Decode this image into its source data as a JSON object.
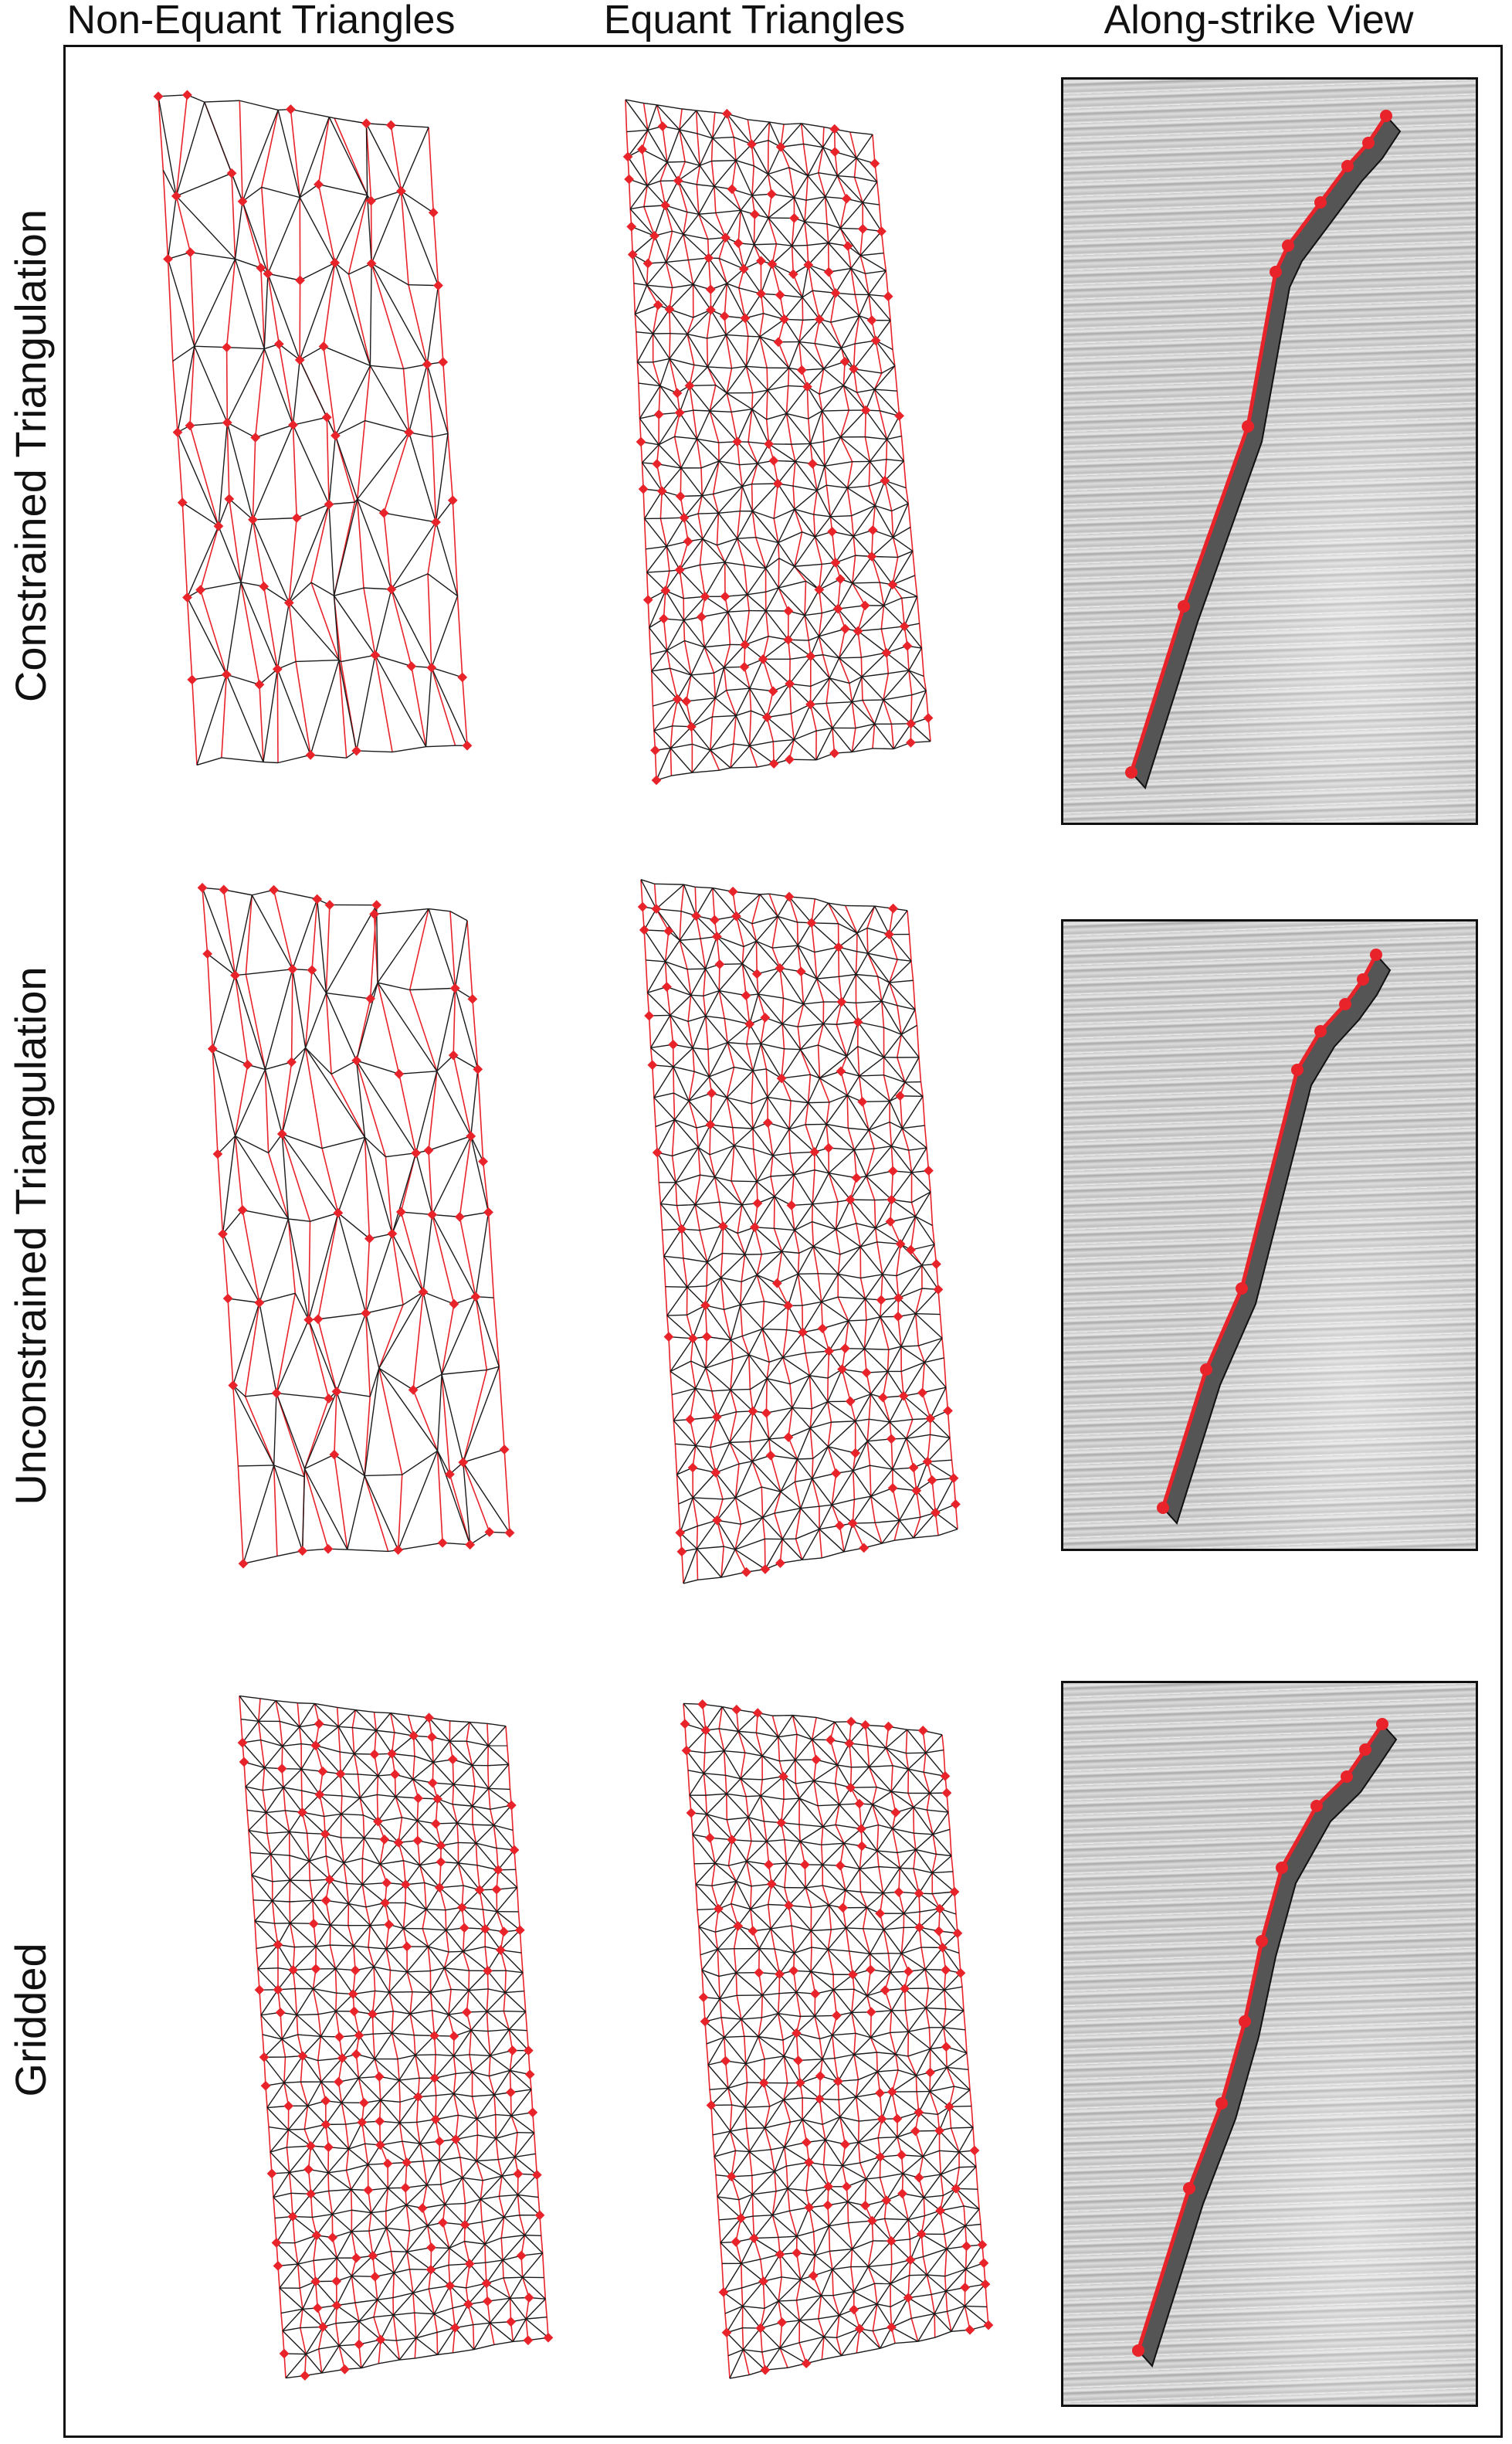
{
  "columns": {
    "non_equant": "Non-Equant Triangles",
    "equant": "Equant Triangles",
    "along_strike": "Along-strike View"
  },
  "rows": {
    "constrained": "Constrained Triangulation",
    "unconstrained": "Unconstrained Triangulation",
    "gridded": "Gridded"
  },
  "colors": {
    "constraint_lines": "#e8232a",
    "mesh_edges": "#1a1a1a",
    "nodes": "#e8232a",
    "fault_surface_fill": "#555555",
    "seismic_background": "#cfcfcf"
  }
}
